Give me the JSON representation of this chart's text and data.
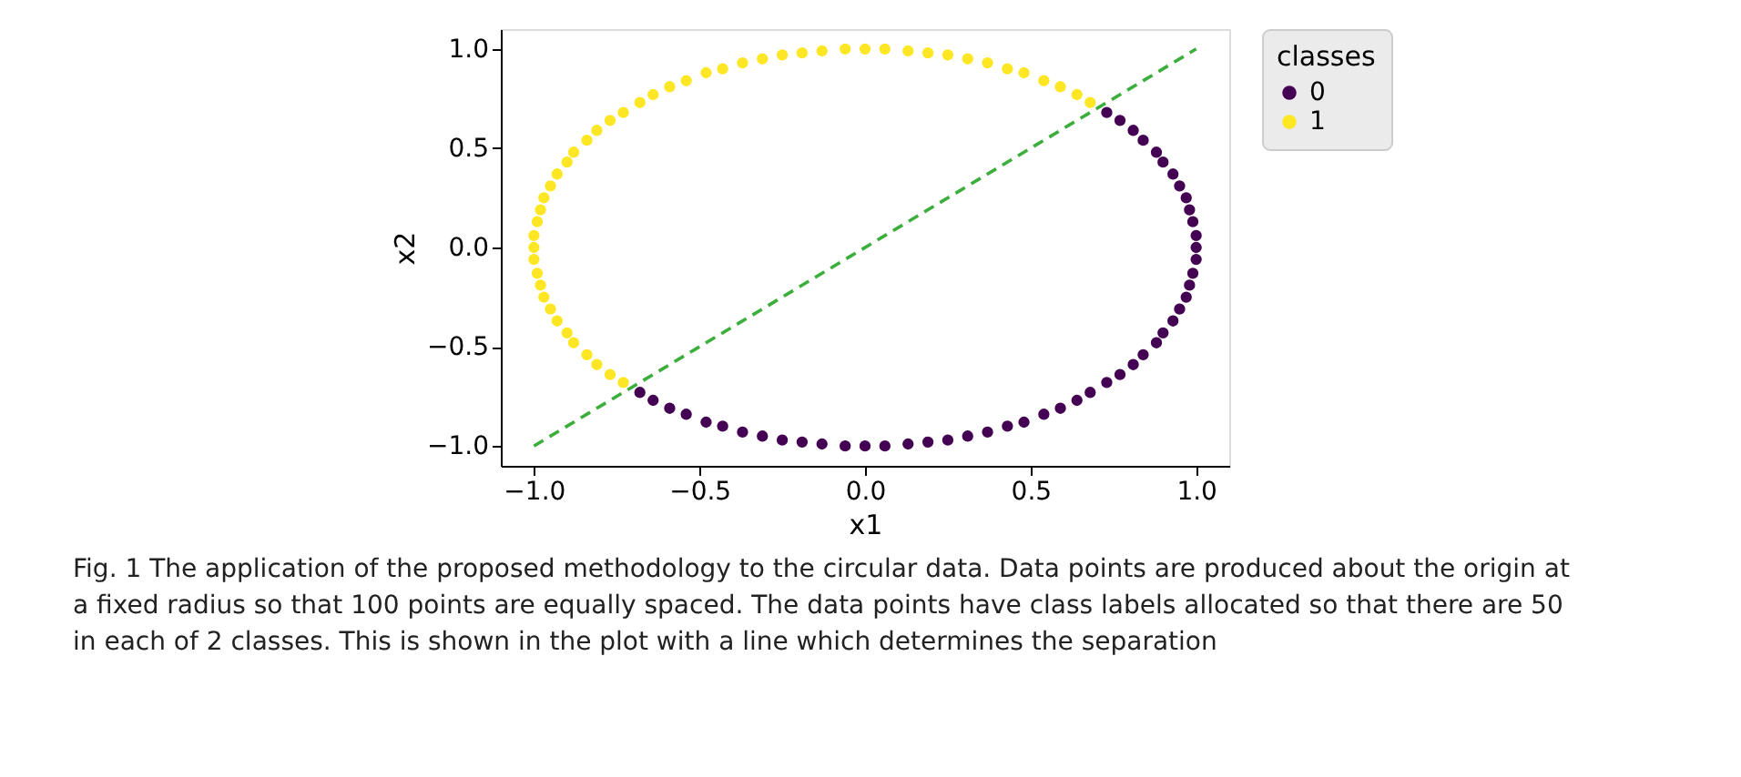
{
  "chart_data": {
    "type": "scatter",
    "xlabel": "x1",
    "ylabel": "x2",
    "legend_title": "classes",
    "legend": "right",
    "grid": false,
    "marker": "circle",
    "xlim": [
      -1.1,
      1.1
    ],
    "ylim": [
      -1.1,
      1.1
    ],
    "xticks": [
      {
        "value": -1.0,
        "label": "−1.0"
      },
      {
        "value": -0.5,
        "label": "−0.5"
      },
      {
        "value": 0.0,
        "label": "0.0"
      },
      {
        "value": 0.5,
        "label": "0.5"
      },
      {
        "value": 1.0,
        "label": "1.0"
      }
    ],
    "yticks": [
      {
        "value": -1.0,
        "label": "−1.0"
      },
      {
        "value": -0.5,
        "label": "−0.5"
      },
      {
        "value": 0.0,
        "label": "0.0"
      },
      {
        "value": 0.5,
        "label": "0.5"
      },
      {
        "value": 1.0,
        "label": "1.0"
      }
    ],
    "series": [
      {
        "name": "0",
        "color": "#440154",
        "x": [
          -0.68,
          -0.64,
          -0.59,
          -0.54,
          -0.48,
          -0.43,
          -0.37,
          -0.31,
          -0.25,
          -0.19,
          -0.13,
          -0.06,
          0.0,
          0.06,
          0.13,
          0.19,
          0.25,
          0.31,
          0.37,
          0.43,
          0.48,
          0.54,
          0.59,
          0.64,
          0.68,
          0.73,
          0.77,
          0.81,
          0.84,
          0.88,
          0.9,
          0.93,
          0.95,
          0.97,
          0.98,
          0.99,
          1.0,
          1.0,
          1.0,
          0.99,
          0.98,
          0.97,
          0.95,
          0.93,
          0.9,
          0.88,
          0.84,
          0.81,
          0.77,
          0.73
        ],
        "values": [
          -0.73,
          -0.77,
          -0.81,
          -0.84,
          -0.88,
          -0.9,
          -0.93,
          -0.95,
          -0.97,
          -0.98,
          -0.99,
          -1.0,
          -1.0,
          -1.0,
          -0.99,
          -0.98,
          -0.97,
          -0.95,
          -0.93,
          -0.9,
          -0.88,
          -0.84,
          -0.81,
          -0.77,
          -0.73,
          -0.68,
          -0.64,
          -0.59,
          -0.54,
          -0.48,
          -0.43,
          -0.37,
          -0.31,
          -0.25,
          -0.19,
          -0.13,
          -0.06,
          0.0,
          0.06,
          0.13,
          0.19,
          0.25,
          0.31,
          0.37,
          0.43,
          0.48,
          0.54,
          0.59,
          0.64,
          0.68
        ]
      },
      {
        "name": "1",
        "color": "#fde725",
        "x": [
          0.68,
          0.64,
          0.59,
          0.54,
          0.48,
          0.43,
          0.37,
          0.31,
          0.25,
          0.19,
          0.13,
          0.06,
          0.0,
          -0.06,
          -0.13,
          -0.19,
          -0.25,
          -0.31,
          -0.37,
          -0.43,
          -0.48,
          -0.54,
          -0.59,
          -0.64,
          -0.68,
          -0.73,
          -0.77,
          -0.81,
          -0.84,
          -0.88,
          -0.9,
          -0.93,
          -0.95,
          -0.97,
          -0.98,
          -0.99,
          -1.0,
          -1.0,
          -1.0,
          -0.99,
          -0.98,
          -0.97,
          -0.95,
          -0.93,
          -0.9,
          -0.88,
          -0.84,
          -0.81,
          -0.77,
          -0.73
        ],
        "values": [
          0.73,
          0.77,
          0.81,
          0.84,
          0.88,
          0.9,
          0.93,
          0.95,
          0.97,
          0.98,
          0.99,
          1.0,
          1.0,
          1.0,
          0.99,
          0.98,
          0.97,
          0.95,
          0.93,
          0.9,
          0.88,
          0.84,
          0.81,
          0.77,
          0.73,
          0.68,
          0.64,
          0.59,
          0.54,
          0.48,
          0.43,
          0.37,
          0.31,
          0.25,
          0.19,
          0.13,
          0.06,
          0.0,
          -0.06,
          -0.13,
          -0.19,
          -0.25,
          -0.31,
          -0.37,
          -0.43,
          -0.48,
          -0.54,
          -0.59,
          -0.64,
          -0.68
        ]
      },
      {
        "type": "line",
        "line_style": "dashed",
        "marker": "none",
        "color": "#3cae3c",
        "x": [
          -1.0,
          1.0
        ],
        "values": [
          -1.0,
          1.0
        ]
      }
    ],
    "annotations": [
      "Fig. 1  The application of the proposed methodology to the circular data. Data points are produced about the origin at a fixed radius so that 100 points are equally spaced. The data points have class labels allocated so that there are 50 in each of 2 classes. This is shown in the plot with a line which determines the separation"
    ]
  }
}
